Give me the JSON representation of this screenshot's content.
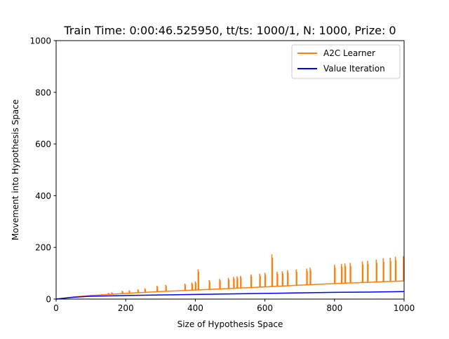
{
  "chart_data": {
    "type": "line",
    "title": "Train Time: 0:00:46.525950, tt/ts: 1000/1, N: 1000, Prize: 0",
    "xlabel": "Size of Hypothesis Space",
    "ylabel": "Movement into Hypothesis Space",
    "xlim": [
      0,
      1000
    ],
    "ylim": [
      0,
      1000
    ],
    "xticks": [
      0,
      200,
      400,
      600,
      800,
      1000
    ],
    "yticks": [
      0,
      200,
      400,
      600,
      800,
      1000
    ],
    "grid": false,
    "legend_position": "top-right",
    "series": [
      {
        "name": "A2C Learner",
        "color": "#ff7f0e",
        "baseline": [
          [
            0,
            0
          ],
          [
            50,
            8
          ],
          [
            100,
            14
          ],
          [
            200,
            22
          ],
          [
            300,
            29
          ],
          [
            400,
            35
          ],
          [
            500,
            41
          ],
          [
            600,
            47
          ],
          [
            700,
            54
          ],
          [
            800,
            60
          ],
          [
            900,
            65
          ],
          [
            1000,
            70
          ]
        ],
        "spikes": [
          [
            100,
            17
          ],
          [
            130,
            20
          ],
          [
            150,
            24
          ],
          [
            160,
            26
          ],
          [
            190,
            32
          ],
          [
            210,
            34
          ],
          [
            235,
            38
          ],
          [
            255,
            42
          ],
          [
            290,
            52
          ],
          [
            315,
            55
          ],
          [
            370,
            60
          ],
          [
            390,
            64
          ],
          [
            400,
            68
          ],
          [
            408,
            115
          ],
          [
            440,
            73
          ],
          [
            470,
            78
          ],
          [
            495,
            82
          ],
          [
            510,
            86
          ],
          [
            520,
            88
          ],
          [
            530,
            90
          ],
          [
            560,
            95
          ],
          [
            585,
            98
          ],
          [
            600,
            102
          ],
          [
            620,
            173
          ],
          [
            635,
            106
          ],
          [
            650,
            108
          ],
          [
            665,
            112
          ],
          [
            690,
            115
          ],
          [
            720,
            118
          ],
          [
            730,
            122
          ],
          [
            800,
            133
          ],
          [
            820,
            136
          ],
          [
            830,
            138
          ],
          [
            845,
            140
          ],
          [
            880,
            146
          ],
          [
            895,
            148
          ],
          [
            920,
            153
          ],
          [
            940,
            158
          ],
          [
            960,
            160
          ],
          [
            975,
            164
          ],
          [
            998,
            166
          ]
        ]
      },
      {
        "name": "Value Iteration",
        "color": "#0000ff",
        "points": [
          [
            0,
            0
          ],
          [
            50,
            7
          ],
          [
            100,
            11
          ],
          [
            200,
            14
          ],
          [
            300,
            16
          ],
          [
            400,
            18
          ],
          [
            500,
            20
          ],
          [
            600,
            22
          ],
          [
            700,
            24
          ],
          [
            800,
            26
          ],
          [
            900,
            27
          ],
          [
            1000,
            29
          ]
        ]
      }
    ]
  }
}
